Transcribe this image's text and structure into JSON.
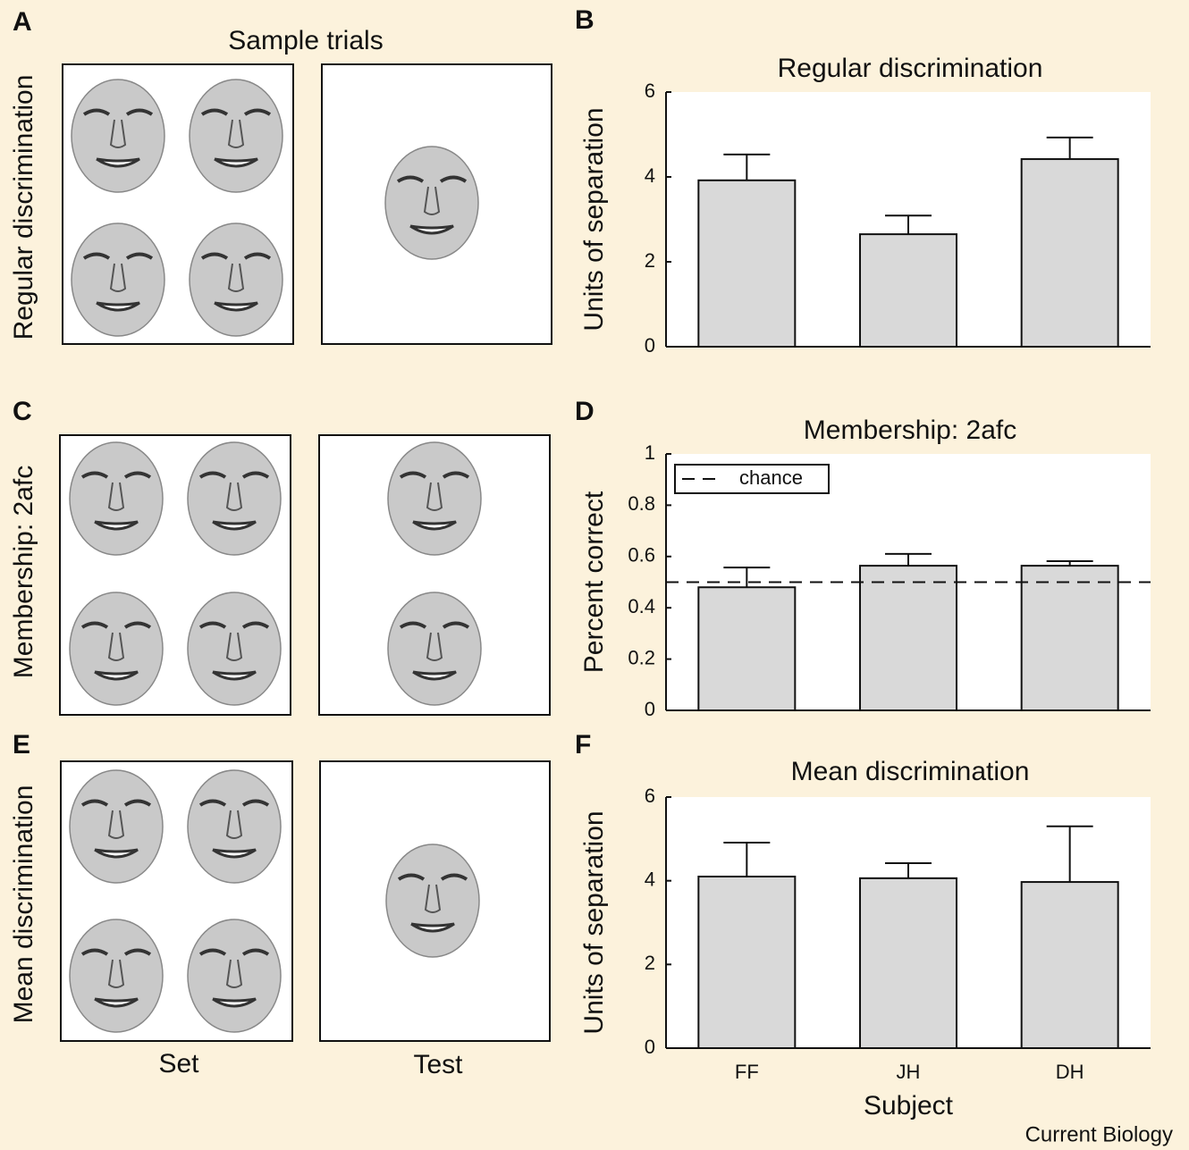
{
  "figure": {
    "panels": [
      "A",
      "B",
      "C",
      "D",
      "E",
      "F"
    ],
    "sample_title": "Sample trials",
    "rows": [
      "Regular discrimination",
      "Membership: 2afc",
      "Mean discrimination"
    ],
    "columns": [
      "Set",
      "Test"
    ],
    "credit": "Current Biology"
  },
  "chart_data": [
    {
      "type": "bar",
      "title": "Regular discrimination",
      "ylabel": "Units of separation",
      "categories": [
        null,
        null,
        null
      ],
      "values": [
        3.92,
        2.65,
        4.42
      ],
      "errors": [
        0.61,
        0.44,
        0.51
      ],
      "color": "#d9d9d9",
      "ylim": [
        0,
        6
      ],
      "yticks": [
        0,
        2,
        4,
        6
      ],
      "grid": false
    },
    {
      "type": "bar",
      "title": "Membership: 2afc",
      "ylabel": "Percent correct",
      "categories": [
        null,
        null,
        null
      ],
      "values": [
        0.48,
        0.564,
        0.564
      ],
      "errors": [
        0.077,
        0.046,
        0.018
      ],
      "color": "#d9d9d9",
      "ylim": [
        0,
        1
      ],
      "yticks": [
        0,
        0.2,
        0.4,
        0.6,
        0.8,
        1
      ],
      "grid": false,
      "reference_line": {
        "name": "chance",
        "value": 0.5,
        "style": "dashed"
      },
      "legend": "upper left"
    },
    {
      "type": "bar",
      "title": "Mean discrimination",
      "ylabel": "Units of separation",
      "xlabel": "Subject",
      "categories": [
        "FF",
        "JH",
        "DH"
      ],
      "values": [
        4.1,
        4.06,
        3.97
      ],
      "errors": [
        0.81,
        0.36,
        1.33
      ],
      "color": "#d9d9d9",
      "ylim": [
        0,
        6
      ],
      "yticks": [
        0,
        2,
        4,
        6
      ],
      "grid": false
    }
  ]
}
